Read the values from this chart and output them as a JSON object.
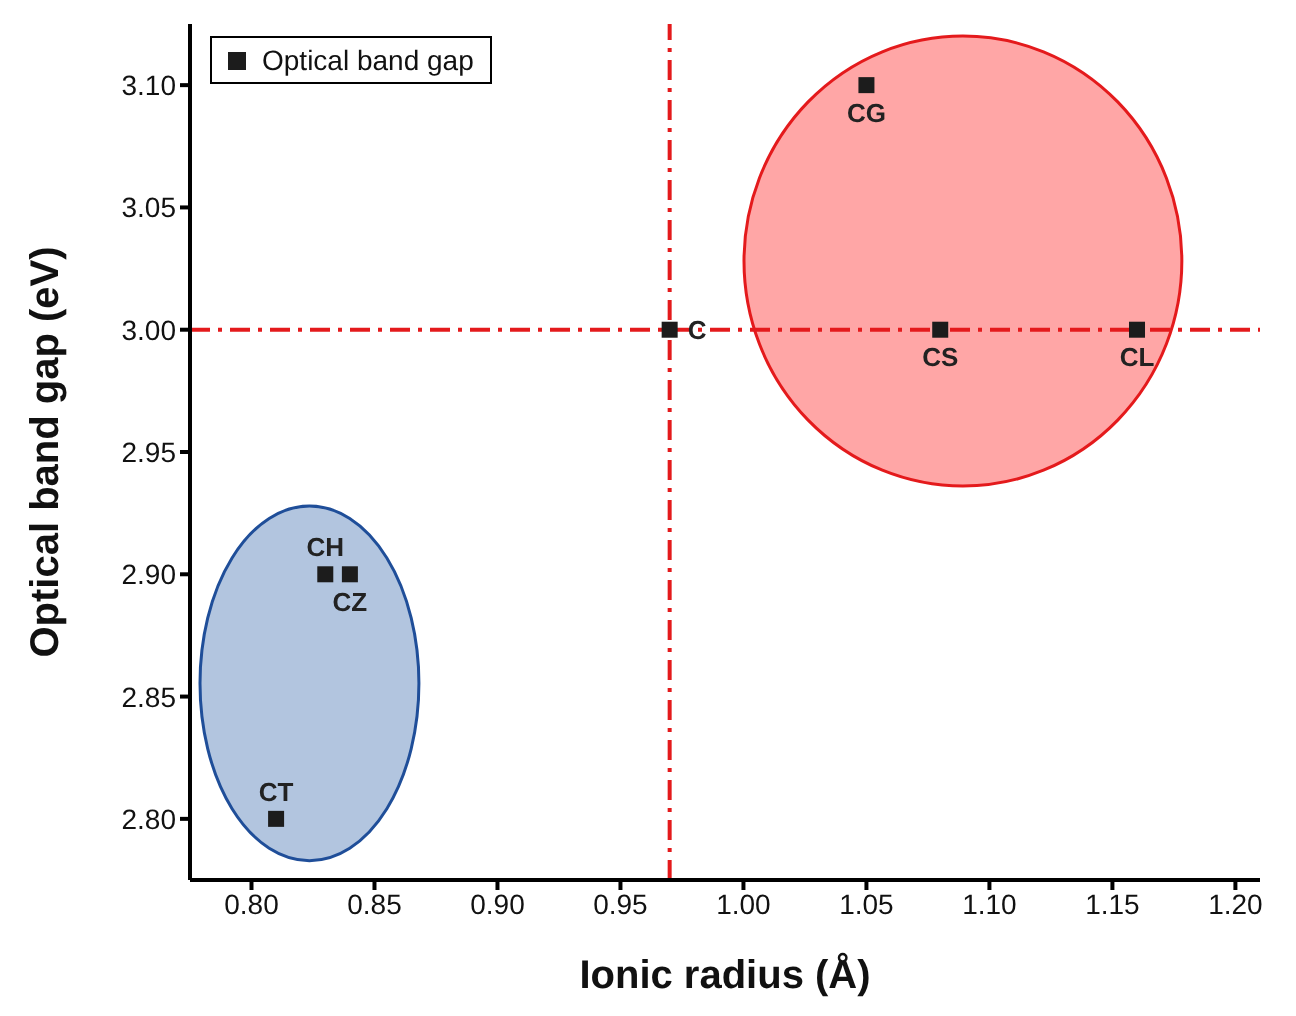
{
  "chart_data": {
    "type": "scatter",
    "xlabel": "Ionic radius (Å)",
    "ylabel": "Optical band gap (eV)",
    "x": [
      0.81,
      0.83,
      0.84,
      0.97,
      1.05,
      1.08,
      1.16
    ],
    "series": [
      {
        "name": "Optical band gap",
        "color": "#1c1c1c",
        "values": [
          2.8,
          2.9,
          2.9,
          3.0,
          3.1,
          3.0,
          3.0
        ]
      }
    ],
    "xlim": [
      0.775,
      1.21
    ],
    "xticks": [
      {
        "value": 0.8,
        "label": "0.80"
      },
      {
        "value": 0.85,
        "label": "0.85"
      },
      {
        "value": 0.9,
        "label": "0.90"
      },
      {
        "value": 0.95,
        "label": "0.95"
      },
      {
        "value": 1.0,
        "label": "1.00"
      },
      {
        "value": 1.05,
        "label": "1.05"
      },
      {
        "value": 1.1,
        "label": "1.10"
      },
      {
        "value": 1.15,
        "label": "1.15"
      },
      {
        "value": 1.2,
        "label": "1.20"
      }
    ],
    "ylim": [
      2.775,
      3.125
    ],
    "yticks": [
      {
        "value": 2.8,
        "label": "2.80"
      },
      {
        "value": 2.85,
        "label": "2.85"
      },
      {
        "value": 2.9,
        "label": "2.90"
      },
      {
        "value": 2.95,
        "label": "2.95"
      },
      {
        "value": 3.0,
        "label": "3.00"
      },
      {
        "value": 3.05,
        "label": "3.05"
      },
      {
        "value": 3.1,
        "label": "3.10"
      }
    ],
    "ref_lines": [
      {
        "axis": "x",
        "value": 0.97,
        "color": "#e41a1c",
        "line_style": "dashdot"
      },
      {
        "axis": "y",
        "value": 3.0,
        "color": "#e41a1c",
        "line_style": "dashdot"
      }
    ],
    "annotations": [
      {
        "text": "CT",
        "x": 0.81,
        "y": 2.8
      },
      {
        "text": "CH",
        "x": 0.83,
        "y": 2.9
      },
      {
        "text": "CZ",
        "x": 0.84,
        "y": 2.9
      },
      {
        "text": "C",
        "x": 0.97,
        "y": 3.0
      },
      {
        "text": "CG",
        "x": 1.05,
        "y": 3.1
      },
      {
        "text": "CS",
        "x": 1.08,
        "y": 3.0
      },
      {
        "text": "CL",
        "x": 1.16,
        "y": 3.0
      }
    ],
    "marker": "square",
    "legend": "top left"
  }
}
